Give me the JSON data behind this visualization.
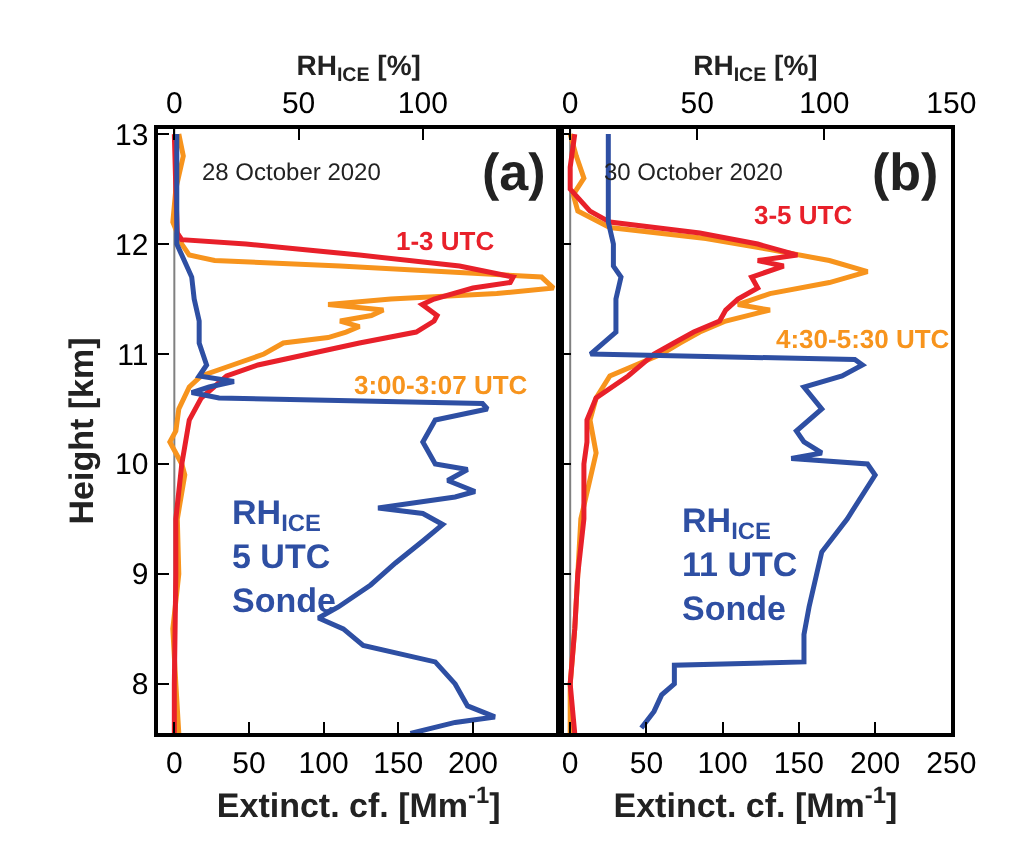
{
  "chart_data": [
    {
      "type": "line",
      "orientation": "horizontal",
      "xlabel": "Extinct. cf. [Mm$^{-1}$]",
      "x2label": "RH$_{ICE}$ [%]",
      "ylabel": "Height [km]",
      "xlim": [
        -11,
        258
      ],
      "xticks": [
        0,
        50,
        100,
        150,
        200
      ],
      "x2lim": [
        -6.6,
        155
      ],
      "x2ticks": [
        0,
        50,
        100
      ],
      "ylim": [
        7.55,
        13.05
      ],
      "yticks": [
        8,
        9,
        10,
        11,
        12,
        13
      ],
      "legend": false,
      "marker": "none",
      "line_style": "solid",
      "annotations": [
        "28 October 2020",
        "(a)"
      ],
      "ref_lines": [
        {
          "axis": "x",
          "value": 0,
          "color": "#808080"
        }
      ],
      "series": [
        {
          "name": "3:00-3:07 UTC",
          "color": "#f7941d",
          "x": [
            13.0,
            12.8,
            12.5,
            12.2,
            12.0,
            11.9,
            11.85,
            11.8,
            11.7,
            11.65,
            11.6,
            11.55,
            11.5,
            11.45,
            11.4,
            11.35,
            11.3,
            11.25,
            11.2,
            11.15,
            11.1,
            11.0,
            10.9,
            10.8,
            10.7,
            10.5,
            10.3,
            10.2,
            10.0,
            9.9,
            9.5,
            9.0,
            8.5,
            8.0,
            7.55
          ],
          "values": [
            3,
            6,
            1,
            -1,
            5,
            10,
            27,
            111,
            246,
            250,
            254,
            216,
            145,
            103,
            140,
            132,
            111,
            124,
            115,
            103,
            73,
            60,
            39,
            18,
            10,
            3,
            1,
            -3,
            5,
            7,
            2,
            3,
            -1,
            1,
            3
          ]
        },
        {
          "name": "1-3 UTC",
          "color": "#e8202a",
          "x": [
            13.0,
            12.5,
            12.1,
            12.04,
            12.0,
            11.9,
            11.8,
            11.7,
            11.65,
            11.6,
            11.5,
            11.45,
            11.35,
            11.3,
            11.2,
            11.1,
            11.0,
            10.9,
            10.8,
            10.6,
            10.4,
            10.0,
            9.5,
            9.0,
            8.0,
            7.55
          ],
          "values": [
            0,
            1,
            2,
            5,
            48,
            124,
            191,
            227,
            225,
            200,
            174,
            166,
            176,
            174,
            162,
            124,
            90,
            56,
            35,
            18,
            10,
            5,
            1,
            1,
            0,
            0
          ]
        },
        {
          "name": "RH$_{ICE}$\n5 UTC\nSonde",
          "color": "#2e4fa3",
          "axis": "x2",
          "x": [
            13.0,
            12.5,
            12.2,
            12.0,
            11.9,
            11.7,
            11.5,
            11.3,
            11.1,
            10.9,
            10.8,
            10.75,
            10.7,
            10.65,
            10.6,
            10.55,
            10.5,
            10.4,
            10.2,
            10.0,
            9.95,
            9.85,
            9.75,
            9.7,
            9.6,
            9.55,
            9.45,
            9.3,
            9.1,
            8.9,
            8.7,
            8.6,
            8.5,
            8.35,
            8.2,
            8.0,
            7.8,
            7.7,
            7.65,
            7.55
          ],
          "values": [
            1,
            1,
            1,
            1,
            3,
            7,
            8,
            10,
            10,
            13,
            10,
            24,
            14,
            7,
            18,
            124,
            126,
            105,
            100,
            105,
            118,
            110,
            121,
            113,
            82,
            100,
            108,
            100,
            89,
            79,
            66,
            58,
            68,
            76,
            105,
            113,
            118,
            129,
            113,
            95
          ]
        }
      ]
    },
    {
      "type": "line",
      "orientation": "horizontal",
      "xlabel": "Extinct. cf. [Mm$^{-1}$]",
      "x2label": "RH$_{ICE}$ [%]",
      "xlim": [
        -7,
        250
      ],
      "xticks": [
        0,
        50,
        100,
        150,
        200,
        250
      ],
      "x2lim": [
        -4.2,
        150
      ],
      "x2ticks": [
        0,
        50,
        100,
        150
      ],
      "ylim": [
        7.55,
        13.05
      ],
      "yticks": [
        8,
        9,
        10,
        11,
        12,
        13
      ],
      "tick_labels": "x",
      "legend": false,
      "marker": "none",
      "line_style": "solid",
      "annotations": [
        "30 October 2020",
        "(b)"
      ],
      "ref_lines": [
        {
          "axis": "x",
          "value": 0,
          "color": "#808080"
        }
      ],
      "series": [
        {
          "name": "4:30-5:30 UTC",
          "color": "#f7941d",
          "x": [
            13.0,
            12.8,
            12.6,
            12.45,
            12.3,
            12.15,
            12.05,
            11.95,
            11.85,
            11.75,
            11.65,
            11.55,
            11.45,
            11.4,
            11.3,
            11.2,
            11.1,
            11.0,
            10.8,
            10.6,
            10.4,
            10.1,
            9.5,
            9.0,
            8.5,
            8.0,
            7.55
          ],
          "values": [
            0,
            4,
            9,
            2,
            5,
            26,
            89,
            131,
            170,
            195,
            170,
            131,
            110,
            131,
            102,
            85,
            72,
            60,
            26,
            17,
            13,
            17,
            7,
            5,
            3,
            0,
            0
          ]
        },
        {
          "name": "3-5 UTC",
          "color": "#e8202a",
          "x": [
            13.0,
            12.7,
            12.5,
            12.3,
            12.2,
            12.1,
            12.0,
            11.9,
            11.85,
            11.8,
            11.7,
            11.6,
            11.5,
            11.4,
            11.3,
            11.2,
            11.1,
            11.0,
            10.8,
            10.6,
            10.4,
            10.2,
            10.0,
            9.5,
            9.0,
            8.5,
            8.0,
            7.55
          ],
          "values": [
            3,
            0,
            0,
            13,
            26,
            85,
            123,
            149,
            123,
            140,
            119,
            123,
            110,
            102,
            98,
            81,
            68,
            55,
            38,
            17,
            11,
            11,
            9,
            9,
            5,
            3,
            0,
            3
          ]
        },
        {
          "name": "RH$_{ICE}$\n11 UTC\nSonde",
          "color": "#2e4fa3",
          "axis": "x2",
          "x": [
            13.0,
            12.2,
            12.0,
            11.8,
            11.7,
            11.5,
            11.2,
            11.1,
            11.0,
            10.95,
            10.9,
            10.8,
            10.7,
            10.5,
            10.3,
            10.2,
            10.1,
            10.05,
            10.0,
            9.9,
            9.5,
            9.2,
            9.0,
            8.7,
            8.45,
            8.2,
            8.17,
            8.0,
            7.9,
            7.75,
            7.6
          ],
          "values": [
            15,
            15,
            17,
            17,
            20,
            18,
            18,
            13,
            8,
            112,
            115,
            107,
            92,
            99,
            89,
            92,
            99,
            87,
            117,
            120,
            109,
            99,
            97,
            94,
            92,
            92,
            41,
            41,
            36,
            33,
            28
          ]
        }
      ]
    }
  ]
}
